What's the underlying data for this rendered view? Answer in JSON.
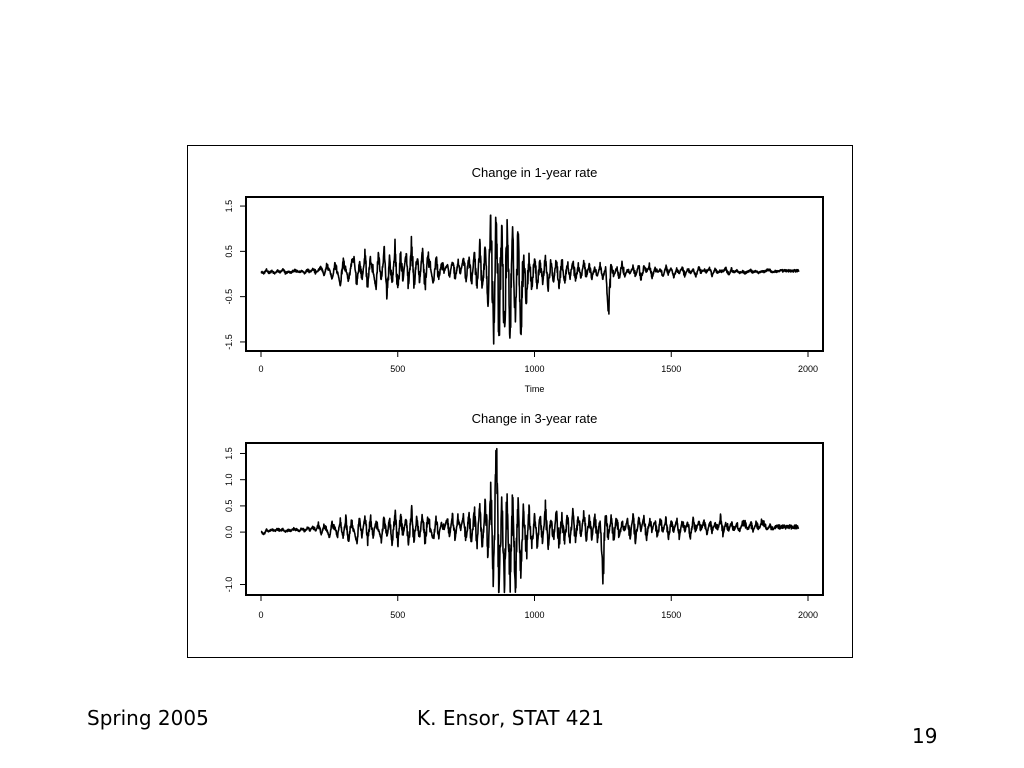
{
  "footer": {
    "left": "Spring 2005",
    "center": "K. Ensor, STAT 421",
    "page_number": "19"
  },
  "colors": {
    "line": "#000000",
    "background": "#ffffff"
  },
  "chart_data": [
    {
      "type": "line",
      "title": "Change in 1-year rate",
      "xlabel": "Time",
      "ylabel": "",
      "xlim": [
        0,
        2000
      ],
      "ylim": [
        -1.7,
        1.7
      ],
      "xticks": [
        0,
        500,
        1000,
        1500,
        2000
      ],
      "xtick_labels": [
        "0",
        "500",
        "1000",
        "1500",
        "2000"
      ],
      "yticks": [
        -1.5,
        -0.5,
        0.5,
        1.5
      ],
      "ytick_labels": [
        "-1.5",
        "-0.5",
        "0.5",
        "1.5"
      ],
      "n_points": 1967,
      "grid": false,
      "series": [
        {
          "values_sampled_every_10": [
            0.05,
            0.02,
            0.08,
            0.03,
            0.06,
            0.01,
            0.07,
            0.04,
            0.09,
            0.02,
            0.05,
            0.03,
            0.08,
            0.06,
            0.04,
            0.07,
            0.02,
            0.1,
            0.05,
            0.12,
            0.03,
            0.08,
            0.15,
            -0.05,
            0.18,
            0.1,
            -0.1,
            0.2,
            0.05,
            -0.25,
            0.28,
            0.1,
            -0.15,
            0.22,
            0.3,
            -0.2,
            0.25,
            -0.1,
            0.4,
            -0.25,
            0.35,
            0.05,
            -0.3,
            0.45,
            -0.15,
            0.5,
            -0.4,
            0.3,
            -0.2,
            0.55,
            -0.35,
            0.4,
            -0.1,
            0.45,
            -0.3,
            0.6,
            -0.25,
            0.35,
            -0.15,
            0.5,
            -0.3,
            0.4,
            0.1,
            -0.2,
            0.35,
            -0.1,
            0.25,
            0.05,
            0.2,
            -0.05,
            0.3,
            -0.1,
            0.25,
            0.05,
            0.35,
            -0.15,
            0.4,
            -0.2,
            0.45,
            -0.3,
            0.55,
            -0.4,
            0.7,
            -0.6,
            1.3,
            -1.4,
            1.5,
            -1.55,
            1.1,
            -1.45,
            1.2,
            -1.3,
            0.8,
            -1.0,
            0.9,
            -1.2,
            0.5,
            -0.6,
            0.4,
            -0.3,
            0.35,
            -0.25,
            0.3,
            -0.2,
            0.4,
            -0.3,
            0.25,
            -0.15,
            0.35,
            -0.25,
            0.3,
            -0.2,
            0.25,
            -0.1,
            0.3,
            -0.15,
            0.2,
            -0.1,
            0.25,
            -0.05,
            0.2,
            -0.1,
            0.15,
            -0.05,
            0.2,
            -0.1,
            0.15,
            -0.9,
            0.2,
            -0.05,
            0.15,
            -0.1,
            0.25,
            -0.05,
            0.1,
            0.02,
            0.15,
            -0.05,
            0.2,
            -0.1,
            0.15,
            0.05,
            0.18,
            -0.08,
            0.12,
            0.04,
            0.1,
            -0.05,
            0.15,
            0.02,
            0.12,
            -0.06,
            0.1,
            0.03,
            0.14,
            -0.04,
            0.12,
            0.02,
            0.1,
            -0.05,
            0.13,
            0.03,
            0.09,
            0.05,
            0.12,
            -0.03,
            0.1,
            0.02,
            0.08,
            0.05,
            0.15,
            -0.02,
            0.1,
            0.04,
            0.08,
            0.03,
            0.06,
            0.02,
            0.05,
            0.08,
            0.04,
            0.07,
            0.03,
            0.06,
            0.05,
            0.08,
            0.09,
            0.04,
            0.06,
            0.05,
            0.07
          ]
        }
      ]
    },
    {
      "type": "line",
      "title": "Change in 3-year rate",
      "xlabel": "",
      "ylabel": "",
      "xlim": [
        0,
        2000
      ],
      "ylim": [
        -1.2,
        1.7
      ],
      "xticks": [
        0,
        500,
        1000,
        1500,
        2000
      ],
      "xtick_labels": [
        "0",
        "500",
        "1000",
        "1500",
        "2000"
      ],
      "yticks": [
        -1.0,
        0.0,
        0.5,
        1.0,
        1.5
      ],
      "ytick_labels": [
        "-1.0",
        "0.0",
        "0.5",
        "1.0",
        "1.5"
      ],
      "n_points": 1967,
      "grid": false,
      "series": [
        {
          "values_sampled_every_10": [
            0.02,
            -0.05,
            0.04,
            0.01,
            0.05,
            0.02,
            0.06,
            0.03,
            0.05,
            0.01,
            0.04,
            0.02,
            0.06,
            0.05,
            0.03,
            0.07,
            0.02,
            0.08,
            0.04,
            0.1,
            0.02,
            0.15,
            -0.05,
            0.12,
            0.05,
            -0.1,
            0.18,
            0.08,
            -0.08,
            0.2,
            -0.1,
            0.25,
            -0.15,
            0.2,
            0.05,
            -0.2,
            0.25,
            -0.05,
            0.3,
            -0.2,
            0.28,
            -0.1,
            0.2,
            0.05,
            -0.15,
            0.3,
            -0.1,
            0.25,
            -0.2,
            0.35,
            -0.25,
            0.3,
            -0.05,
            0.28,
            -0.2,
            0.4,
            -0.15,
            0.3,
            -0.1,
            0.35,
            -0.2,
            0.3,
            0.05,
            -0.15,
            0.25,
            -0.1,
            0.2,
            0.05,
            0.25,
            -0.05,
            0.3,
            -0.1,
            0.25,
            0.05,
            0.3,
            -0.15,
            0.35,
            -0.2,
            0.4,
            -0.25,
            0.5,
            -0.3,
            0.6,
            -0.4,
            0.8,
            -0.9,
            1.5,
            -1.0,
            0.7,
            -1.1,
            0.75,
            -0.95,
            0.6,
            -1.05,
            0.55,
            -0.8,
            0.45,
            -0.5,
            0.4,
            -0.3,
            0.35,
            -0.25,
            0.3,
            -0.2,
            0.45,
            -0.3,
            0.25,
            -0.15,
            0.4,
            -0.25,
            0.35,
            -0.2,
            0.3,
            -0.15,
            0.35,
            -0.2,
            0.3,
            -0.1,
            0.35,
            -0.15,
            0.25,
            -0.1,
            0.3,
            -0.15,
            0.25,
            -0.8,
            0.3,
            -0.1,
            0.25,
            -0.15,
            0.3,
            -0.1,
            0.2,
            0.02,
            0.25,
            -0.1,
            0.3,
            -0.15,
            0.25,
            0.05,
            0.28,
            -0.12,
            0.22,
            0.04,
            0.2,
            -0.1,
            0.25,
            0.02,
            0.22,
            -0.1,
            0.2,
            0.03,
            0.24,
            -0.08,
            0.22,
            0.02,
            0.2,
            -0.1,
            0.23,
            0.03,
            0.19,
            0.05,
            0.22,
            -0.06,
            0.2,
            0.02,
            0.18,
            0.05,
            0.25,
            -0.04,
            0.2,
            0.04,
            0.18,
            0.03,
            0.16,
            0.02,
            0.15,
            0.18,
            0.04,
            0.17,
            0.03,
            0.16,
            0.05,
            0.18,
            0.15,
            0.04,
            0.12,
            0.05,
            0.1
          ]
        }
      ]
    }
  ]
}
